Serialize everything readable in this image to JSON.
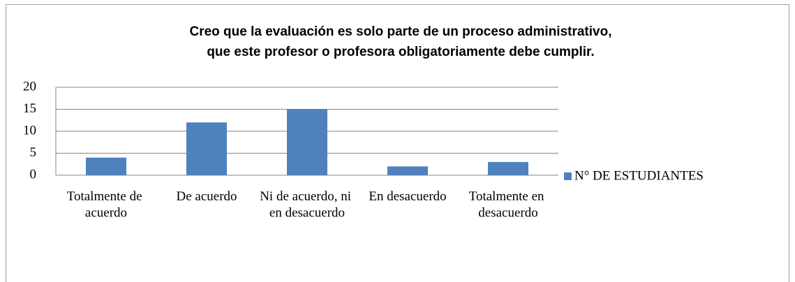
{
  "chart_data": {
    "type": "bar",
    "title": "Creo que la evaluación es solo parte de un proceso administrativo,\nque este profesor o profesora obligatoriamente debe cumplir.",
    "categories": [
      "Totalmente de acuerdo",
      "De acuerdo",
      "Ni de acuerdo, ni en desacuerdo",
      "En desacuerdo",
      "Totalmente en desacuerdo"
    ],
    "series": [
      {
        "name": "N° DE ESTUDIANTES",
        "color": "#4f81bd",
        "values": [
          4,
          12,
          15,
          2,
          3
        ]
      }
    ],
    "ylim": [
      0,
      20
    ],
    "yticks": [
      0,
      5,
      10,
      15,
      20
    ],
    "grid": true,
    "legend": "right"
  }
}
